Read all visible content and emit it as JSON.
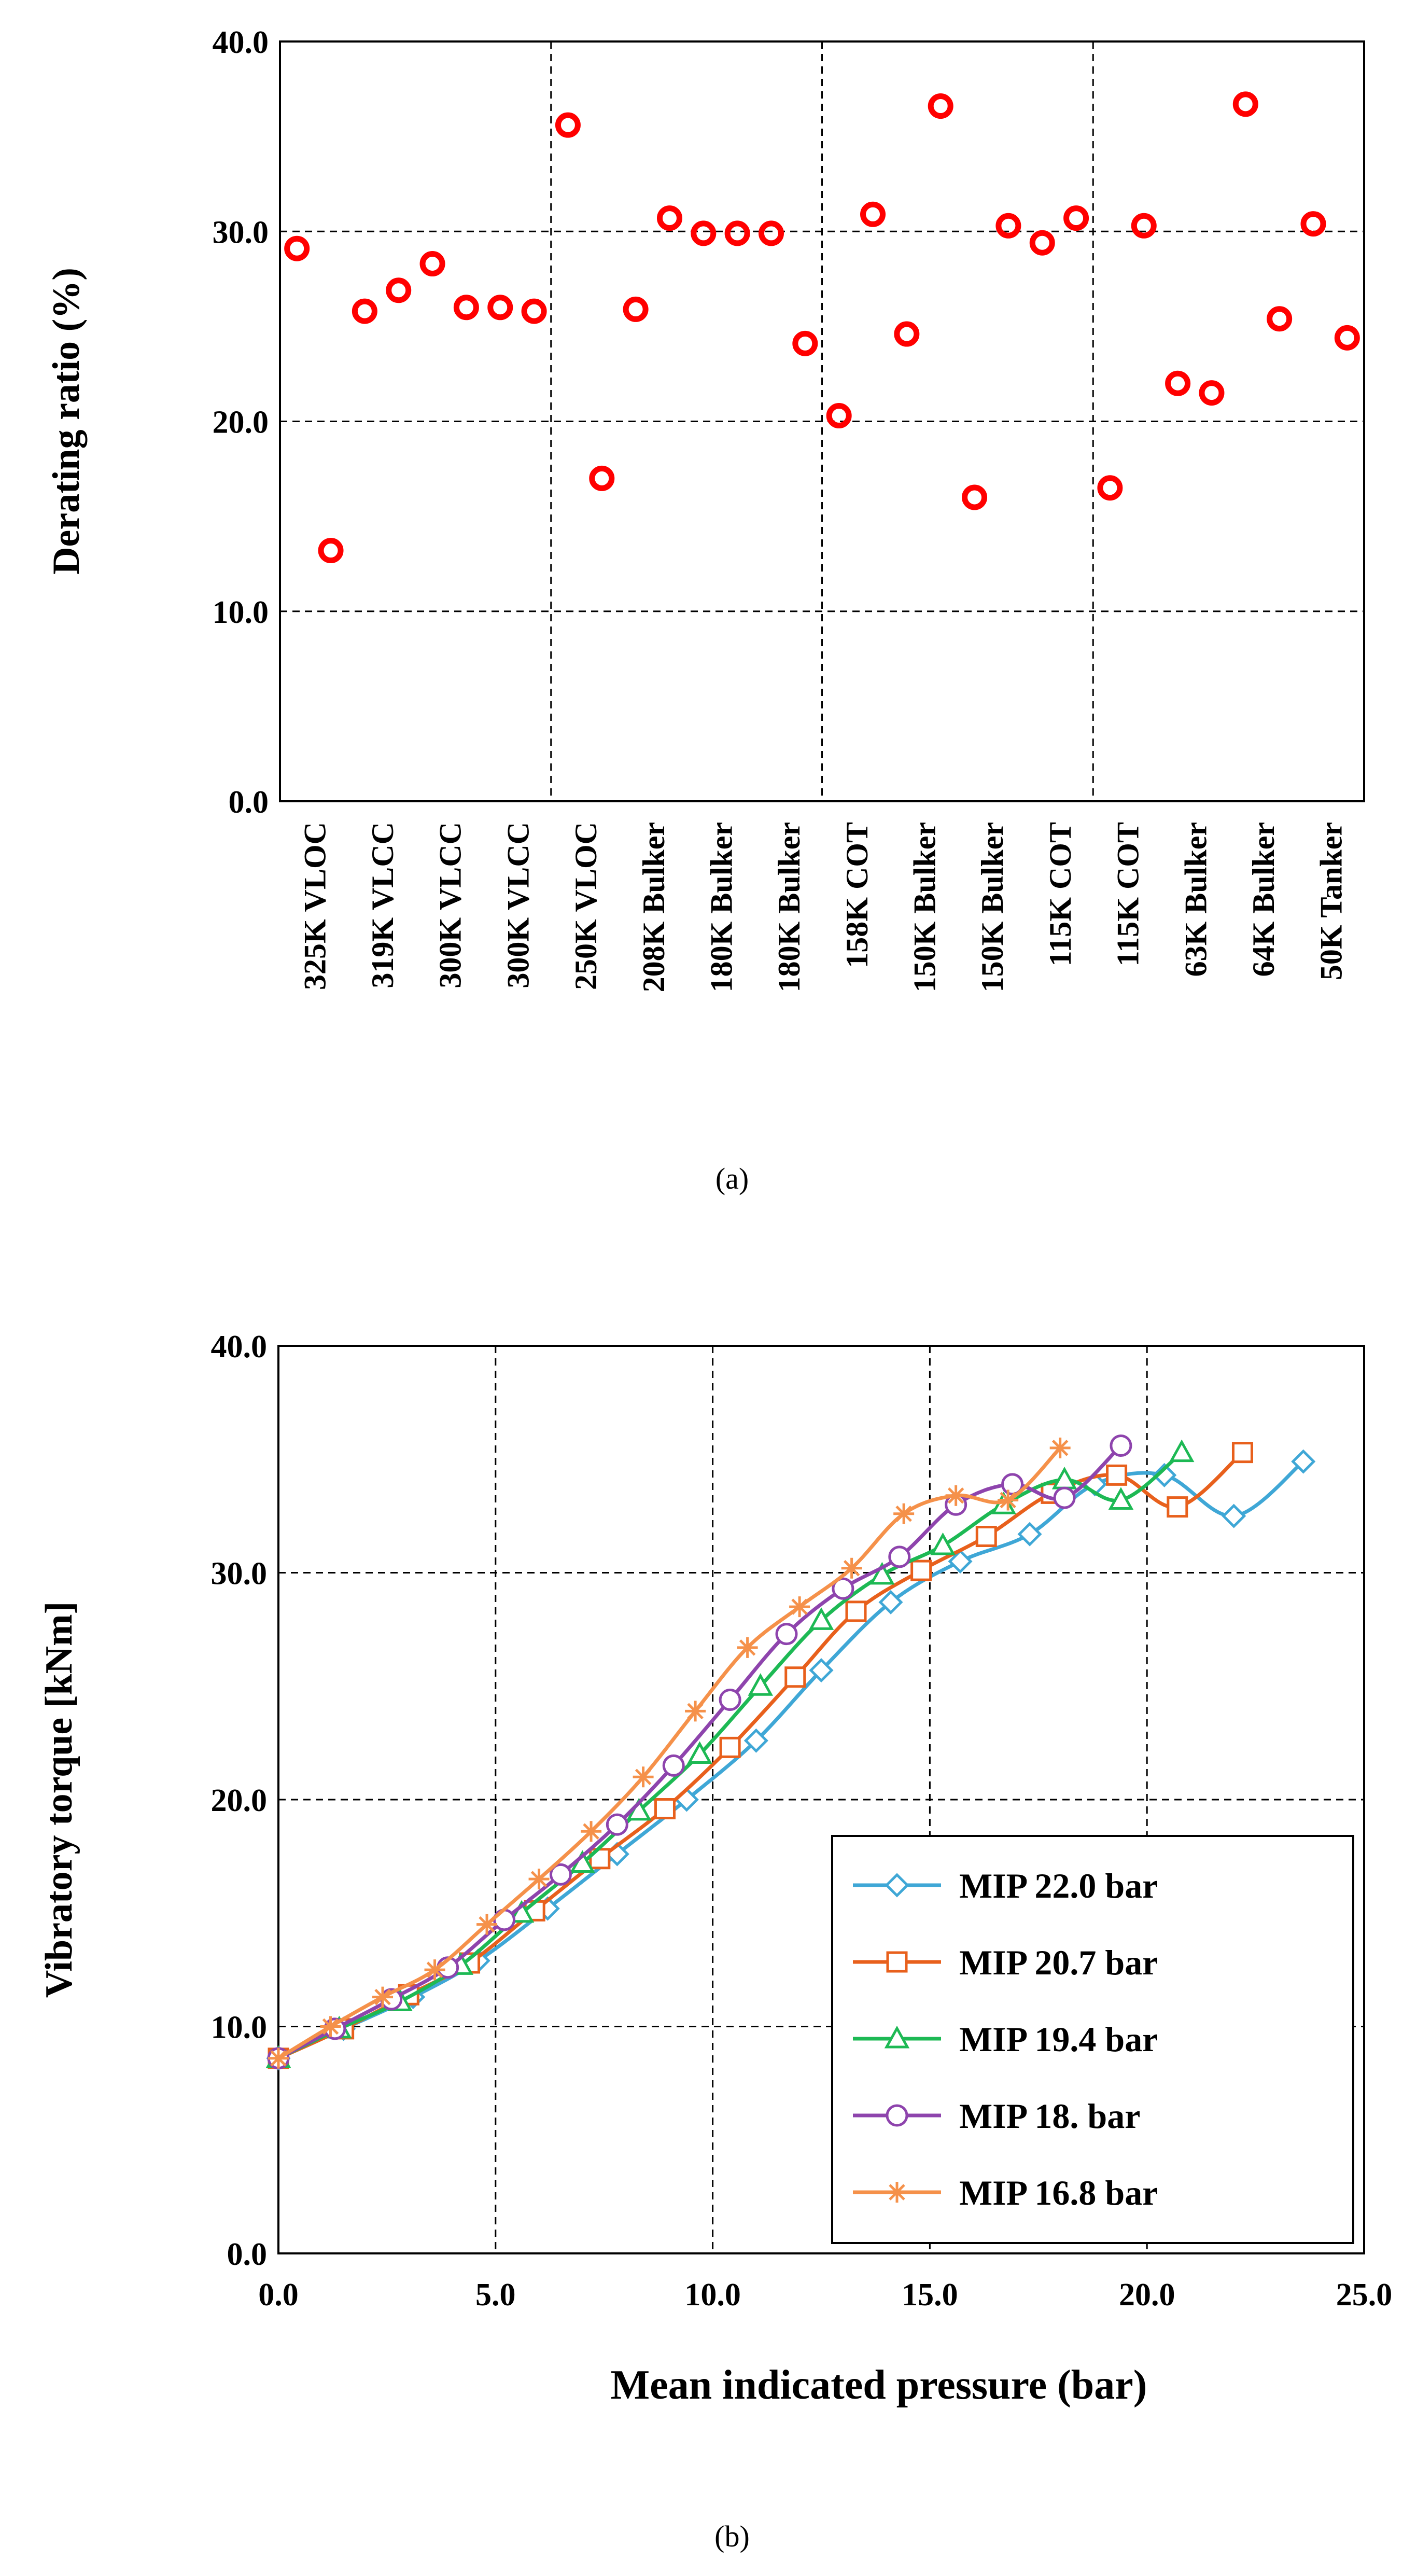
{
  "chart_data": [
    {
      "type": "scatter",
      "panel_label": "(a)",
      "title": "",
      "xlabel": "",
      "ylabel": "Derating ratio (%)",
      "ylim": [
        0,
        40
      ],
      "yticks": [
        "0.0",
        "10.0",
        "20.0",
        "30.0",
        "40.0"
      ],
      "grid": true,
      "category_labels": [
        "325K VLOC",
        "319K VLCC",
        "300K VLCC",
        "300K VLCC",
        "250K VLOC",
        "208K Bulker",
        "180K Bulker",
        "180K Bulker",
        "158K COT",
        "150K Bulker",
        "150K Bulker",
        "115K COT",
        "115K COT",
        "63K Bulker",
        "64K Bulker",
        "50K Tanker"
      ],
      "series": [
        {
          "name": "Derating ratio",
          "color": "#ff0000",
          "marker": "circle",
          "values": [
            29.1,
            13.2,
            25.8,
            26.9,
            28.3,
            26.0,
            26.0,
            25.8,
            35.6,
            17.0,
            25.9,
            30.7,
            29.9,
            29.9,
            29.9,
            24.1,
            20.3,
            30.9,
            24.6,
            36.6,
            16.0,
            30.3,
            29.4,
            30.7,
            16.5,
            30.3,
            22.0,
            21.5,
            36.7,
            25.4,
            30.4,
            24.4
          ]
        }
      ]
    },
    {
      "type": "line",
      "panel_label": "(b)",
      "title": "",
      "xlabel": "Mean indicated pressure (bar)",
      "ylabel": "Vibratory torque [kNm]",
      "xlim": [
        0,
        25
      ],
      "ylim": [
        0,
        40
      ],
      "xticks": [
        "0.0",
        "5.0",
        "10.0",
        "15.0",
        "20.0",
        "25.0"
      ],
      "yticks": [
        "0.0",
        "10.0",
        "20.0",
        "30.0",
        "40.0"
      ],
      "grid": true,
      "legend_position": "lower-right",
      "series": [
        {
          "name": "MIP 22.0 bar",
          "color": "#3fa7d6",
          "marker": "diamond",
          "x": [
            0.0,
            1.5,
            3.1,
            4.6,
            6.2,
            7.8,
            9.4,
            11.0,
            12.5,
            14.1,
            15.7,
            17.3,
            18.8,
            20.4,
            22.0,
            23.6
          ],
          "y": [
            8.6,
            9.9,
            11.3,
            12.9,
            15.2,
            17.6,
            20.0,
            22.6,
            25.7,
            28.7,
            30.5,
            31.7,
            33.9,
            34.3,
            32.5,
            34.9
          ]
        },
        {
          "name": "MIP 20.7 bar",
          "color": "#e8601c",
          "marker": "square",
          "x": [
            0.0,
            1.5,
            3.0,
            4.4,
            5.9,
            7.4,
            8.9,
            10.4,
            11.9,
            13.3,
            14.8,
            16.3,
            17.8,
            19.3,
            20.7,
            22.2
          ],
          "y": [
            8.6,
            9.9,
            11.4,
            12.8,
            15.1,
            17.4,
            19.6,
            22.3,
            25.4,
            28.3,
            30.1,
            31.6,
            33.5,
            34.3,
            32.9,
            35.3
          ]
        },
        {
          "name": "MIP 19.4 bar",
          "color": "#1db954",
          "marker": "triangle",
          "x": [
            0.0,
            1.4,
            2.8,
            4.2,
            5.6,
            7.0,
            8.3,
            9.7,
            11.1,
            12.5,
            13.9,
            15.3,
            16.7,
            18.1,
            19.4,
            20.8
          ],
          "y": [
            8.6,
            9.9,
            11.1,
            12.7,
            15.0,
            17.2,
            19.5,
            22.0,
            25.0,
            27.9,
            29.9,
            31.2,
            33.0,
            34.1,
            33.2,
            35.3
          ]
        },
        {
          "name": "MIP 18. bar",
          "color": "#8e44ad",
          "marker": "circle",
          "x": [
            0.0,
            1.3,
            2.6,
            3.9,
            5.2,
            6.5,
            7.8,
            9.1,
            10.4,
            11.7,
            13.0,
            14.3,
            15.6,
            16.9,
            18.1,
            19.4
          ],
          "y": [
            8.6,
            9.9,
            11.2,
            12.6,
            14.7,
            16.7,
            18.9,
            21.5,
            24.4,
            27.3,
            29.3,
            30.7,
            33.0,
            33.9,
            33.3,
            35.6
          ]
        },
        {
          "name": "MIP 16.8 bar",
          "color": "#f5914a",
          "marker": "asterisk",
          "x": [
            0.0,
            1.2,
            2.4,
            3.6,
            4.8,
            6.0,
            7.2,
            8.4,
            9.6,
            10.8,
            12.0,
            13.2,
            14.4,
            15.6,
            16.8,
            18.0
          ],
          "y": [
            8.6,
            10.0,
            11.3,
            12.5,
            14.5,
            16.5,
            18.6,
            21.0,
            23.9,
            26.7,
            28.5,
            30.2,
            32.6,
            33.4,
            33.2,
            35.5
          ]
        }
      ]
    }
  ]
}
